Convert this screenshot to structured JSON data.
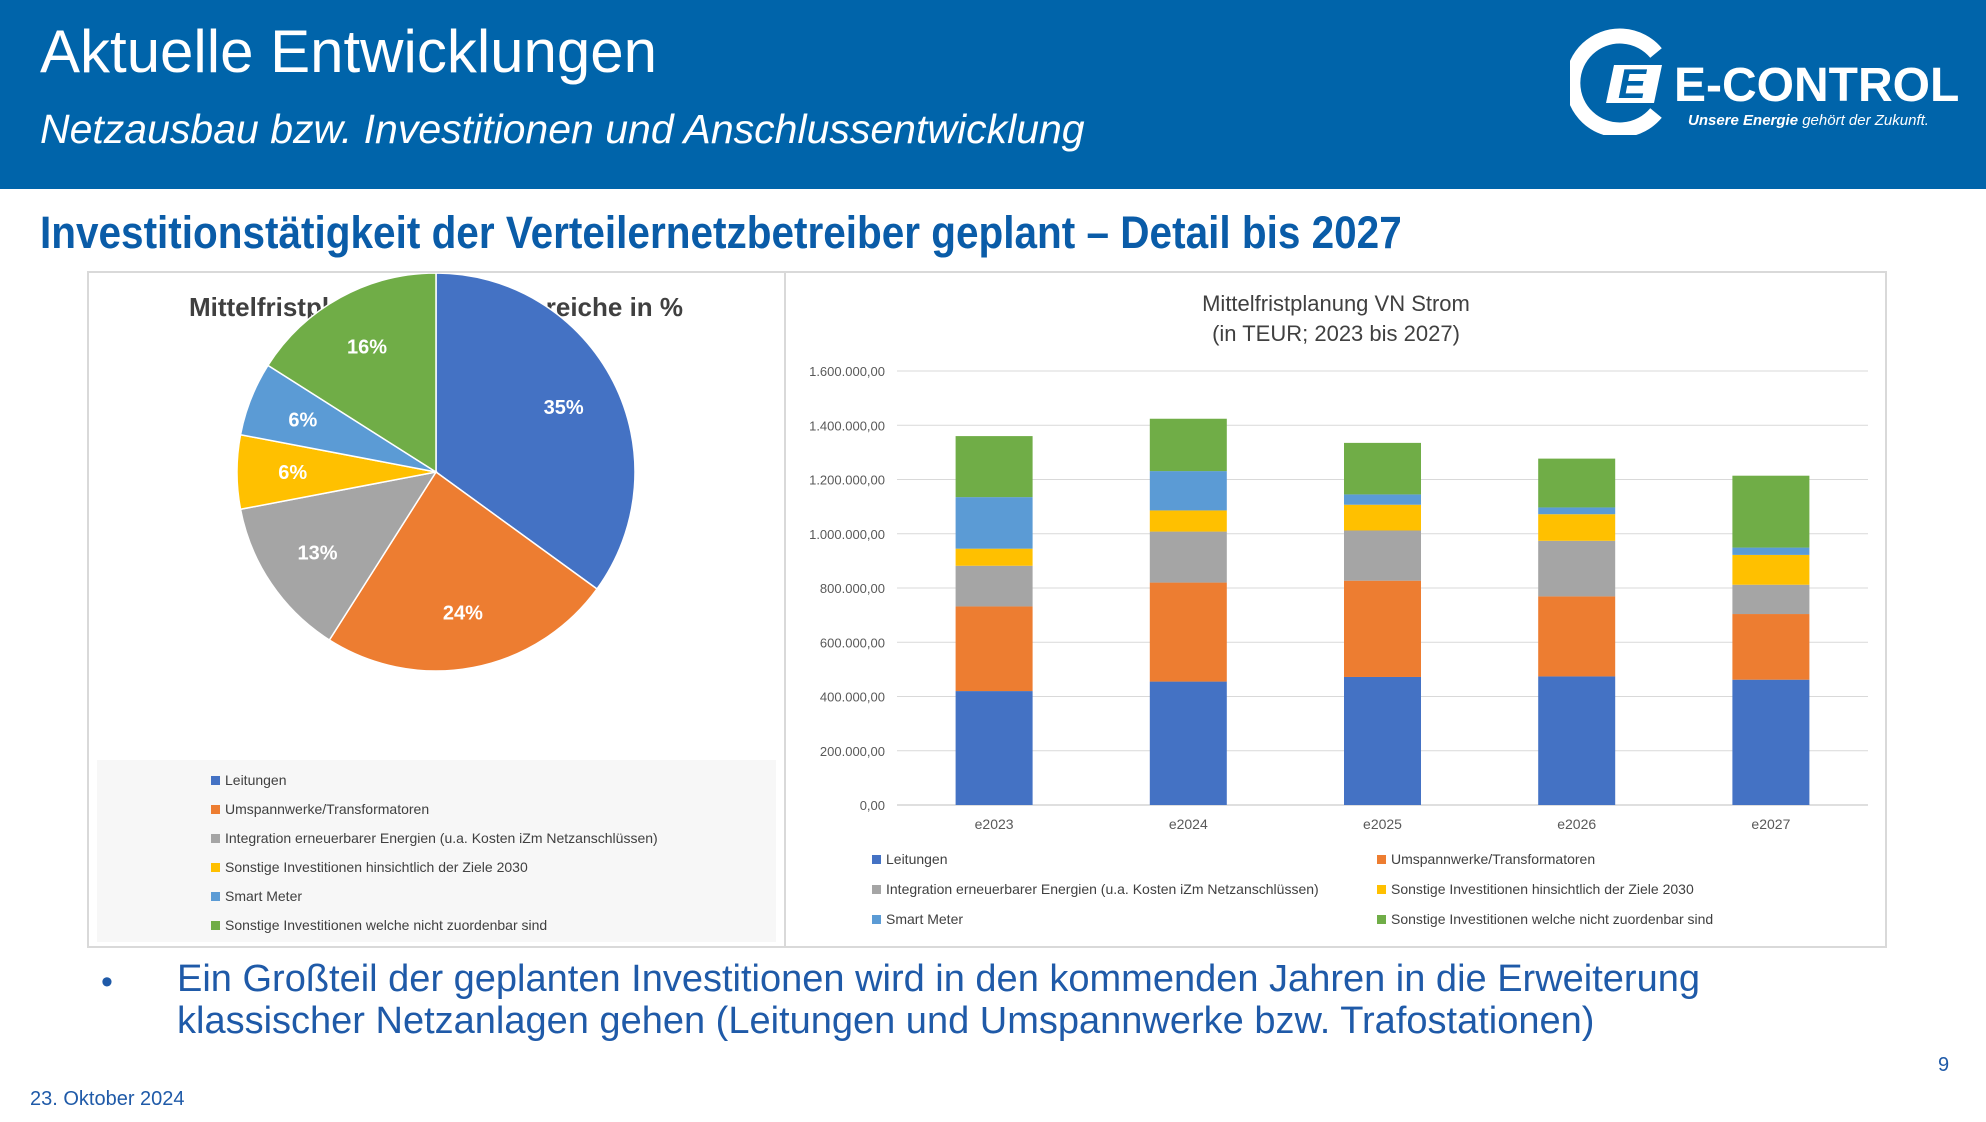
{
  "header": {
    "title": "Aktuelle Entwicklungen",
    "subtitle": "Netzausbau bzw. Investitionen und Anschlussentwicklung",
    "logo_text": "E-CONTROL",
    "logo_tagline_bold": "Unsere Energie",
    "logo_tagline_rest": " gehört der Zukunft."
  },
  "section_title": "Investitionstätigkeit der Verteilernetzbetreiber geplant – Detail bis 2027",
  "colors": {
    "header_bg": "#0064aa",
    "Leitungen": "#4472c4",
    "Umspannwerke": "#ed7d31",
    "Integration": "#a5a5a5",
    "Sonstige2030": "#ffc000",
    "SmartMeter": "#5b9bd5",
    "Sonstige": "#70ad47"
  },
  "chart_data": [
    {
      "type": "pie",
      "title": "Mittelfristplanung Strom - Bereiche in %",
      "legend_position": "bottom",
      "slices": [
        {
          "label": "Leitungen",
          "value": 35,
          "data_label": "35%",
          "color": "#4472c4"
        },
        {
          "label": "Umspannwerke/Transformatoren",
          "value": 24,
          "data_label": "24%",
          "color": "#ed7d31"
        },
        {
          "label": "Integration erneuerbarer Energien (u.a. Kosten iZm Netzanschlüssen)",
          "value": 13,
          "data_label": "13%",
          "color": "#a5a5a5"
        },
        {
          "label": "Sonstige Investitionen hinsichtlich der Ziele 2030",
          "value": 6,
          "data_label": "6%",
          "color": "#ffc000"
        },
        {
          "label": "Smart Meter",
          "value": 6,
          "data_label": "6%",
          "color": "#5b9bd5"
        },
        {
          "label": "Sonstige Investitionen welche nicht zuordenbar sind",
          "value": 16,
          "data_label": "16%",
          "color": "#70ad47"
        }
      ]
    },
    {
      "type": "bar",
      "stacked": true,
      "title_line1": "Mittelfristplanung VN Strom",
      "title_line2": "(in TEUR; 2023 bis 2027)",
      "categories": [
        "e2023",
        "e2024",
        "e2025",
        "e2026",
        "e2027"
      ],
      "ylim": [
        0,
        1600000
      ],
      "yticks": [
        0,
        200000,
        400000,
        600000,
        800000,
        1000000,
        1200000,
        1400000,
        1600000
      ],
      "ytick_labels": [
        "0,00",
        "200.000,00",
        "400.000,00",
        "600.000,00",
        "800.000,00",
        "1.000.000,00",
        "1.200.000,00",
        "1.400.000,00",
        "1.600.000,00"
      ],
      "grid": true,
      "legend_position": "bottom",
      "series": [
        {
          "name": "Leitungen",
          "color": "#4472c4",
          "values": [
            420000,
            455000,
            472000,
            474000,
            462000
          ]
        },
        {
          "name": "Umspannwerke/Transformatoren",
          "color": "#ed7d31",
          "values": [
            312000,
            365000,
            355000,
            295000,
            242000
          ]
        },
        {
          "name": "Integration erneuerbarer Energien (u.a. Kosten iZm Netzanschlüssen)",
          "color": "#a5a5a5",
          "values": [
            150000,
            188000,
            185000,
            205000,
            108000
          ]
        },
        {
          "name": "Sonstige Investitionen hinsichtlich der Ziele 2030",
          "color": "#ffc000",
          "values": [
            63000,
            78000,
            95000,
            98000,
            110000
          ]
        },
        {
          "name": "Smart Meter",
          "color": "#5b9bd5",
          "values": [
            190000,
            145000,
            38000,
            25000,
            27000
          ]
        },
        {
          "name": "Sonstige Investitionen welche nicht zuordenbar sind",
          "color": "#70ad47",
          "values": [
            225000,
            193000,
            190000,
            180000,
            265000
          ]
        }
      ]
    }
  ],
  "bullet": "Ein Großteil der geplanten Investitionen wird in den kommenden Jahren in die Erweiterung klassischer Netzanlagen gehen (Leitungen und Umspannwerke bzw. Trafostationen)",
  "footer": {
    "date": "23. Oktober 2024",
    "page": "9"
  }
}
